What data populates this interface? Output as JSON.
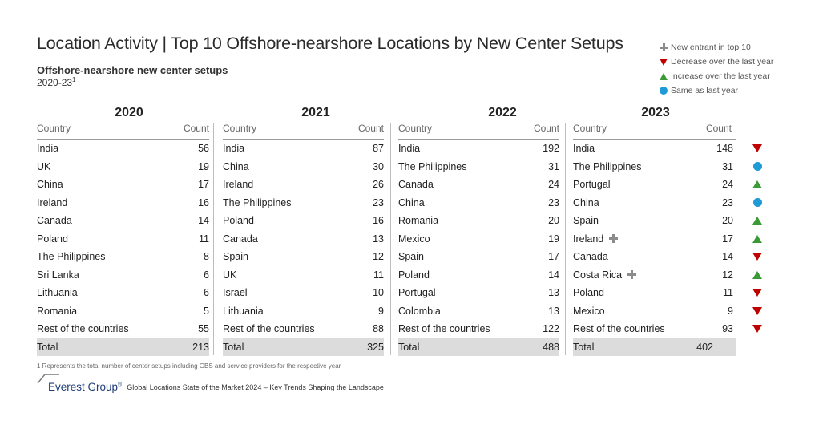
{
  "header": {
    "title": "Location Activity | Top 10 Offshore-nearshore Locations by New Center Setups",
    "subtitle": "Offshore-nearshore new center setups",
    "period": "2020-23",
    "period_sup": "1"
  },
  "legend": [
    {
      "icon": "plus-icon",
      "label": "New entrant in top 10",
      "color": "#8c8c8c"
    },
    {
      "icon": "triangle-down-icon",
      "label": "Decrease over the last year",
      "color": "#c00000"
    },
    {
      "icon": "triangle-up-icon",
      "label": "Increase over the last year",
      "color": "#3a9a35"
    },
    {
      "icon": "circle-icon",
      "label": "Same as last year",
      "color": "#1e9ad6"
    }
  ],
  "chart_data": {
    "type": "table",
    "columns_header": {
      "country": "Country",
      "count": "Count"
    },
    "years": [
      {
        "year": "2020",
        "rows": [
          {
            "country": "India",
            "count": "56"
          },
          {
            "country": "UK",
            "count": "19"
          },
          {
            "country": "China",
            "count": "17"
          },
          {
            "country": "Ireland",
            "count": "16"
          },
          {
            "country": "Canada",
            "count": "14"
          },
          {
            "country": "Poland",
            "count": "11"
          },
          {
            "country": "The Philippines",
            "count": "8"
          },
          {
            "country": "Sri Lanka",
            "count": "6"
          },
          {
            "country": "Lithuania",
            "count": "6"
          },
          {
            "country": "Romania",
            "count": "5"
          },
          {
            "country": "Rest of the countries",
            "count": "55"
          }
        ],
        "total_label": "Total",
        "total": "213"
      },
      {
        "year": "2021",
        "rows": [
          {
            "country": "India",
            "count": "87"
          },
          {
            "country": "China",
            "count": "30"
          },
          {
            "country": "Ireland",
            "count": "26"
          },
          {
            "country": "The Philippines",
            "count": "23"
          },
          {
            "country": "Poland",
            "count": "16"
          },
          {
            "country": "Canada",
            "count": "13"
          },
          {
            "country": "Spain",
            "count": "12"
          },
          {
            "country": "UK",
            "count": "11"
          },
          {
            "country": "Israel",
            "count": "10"
          },
          {
            "country": "Lithuania",
            "count": "9"
          },
          {
            "country": "Rest of the countries",
            "count": "88"
          }
        ],
        "total_label": "Total",
        "total": "325"
      },
      {
        "year": "2022",
        "rows": [
          {
            "country": "India",
            "count": "192"
          },
          {
            "country": "The Philippines",
            "count": "31"
          },
          {
            "country": "Canada",
            "count": "24"
          },
          {
            "country": "China",
            "count": "23"
          },
          {
            "country": "Romania",
            "count": "20"
          },
          {
            "country": "Mexico",
            "count": "19"
          },
          {
            "country": "Spain",
            "count": "17"
          },
          {
            "country": "Poland",
            "count": "14"
          },
          {
            "country": "Portugal",
            "count": "13"
          },
          {
            "country": "Colombia",
            "count": "13"
          },
          {
            "country": "Rest of the countries",
            "count": "122"
          }
        ],
        "total_label": "Total",
        "total": "488"
      },
      {
        "year": "2023",
        "rows": [
          {
            "country": "India",
            "count": "148",
            "new": false,
            "trend": "decrease"
          },
          {
            "country": "The Philippines",
            "count": "31",
            "new": false,
            "trend": "same"
          },
          {
            "country": "Portugal",
            "count": "24",
            "new": false,
            "trend": "increase"
          },
          {
            "country": "China",
            "count": "23",
            "new": false,
            "trend": "same"
          },
          {
            "country": "Spain",
            "count": "20",
            "new": false,
            "trend": "increase"
          },
          {
            "country": "Ireland",
            "count": "17",
            "new": true,
            "trend": "increase"
          },
          {
            "country": "Canada",
            "count": "14",
            "new": false,
            "trend": "decrease"
          },
          {
            "country": "Costa Rica",
            "count": "12",
            "new": true,
            "trend": "increase"
          },
          {
            "country": "Poland",
            "count": "11",
            "new": false,
            "trend": "decrease"
          },
          {
            "country": "Mexico",
            "count": "9",
            "new": false,
            "trend": "decrease"
          },
          {
            "country": "Rest of the countries",
            "count": "93",
            "new": false,
            "trend": "decrease"
          }
        ],
        "total_label": "Total",
        "total": "402"
      }
    ]
  },
  "footnote": "1 Represents the total number of center setups including GBS and service providers for the respective year",
  "footer": {
    "brand": "Everest Group",
    "brand_reg": "®",
    "report": "Global Locations State of the Market 2024 – Key Trends Shaping the Landscape"
  }
}
